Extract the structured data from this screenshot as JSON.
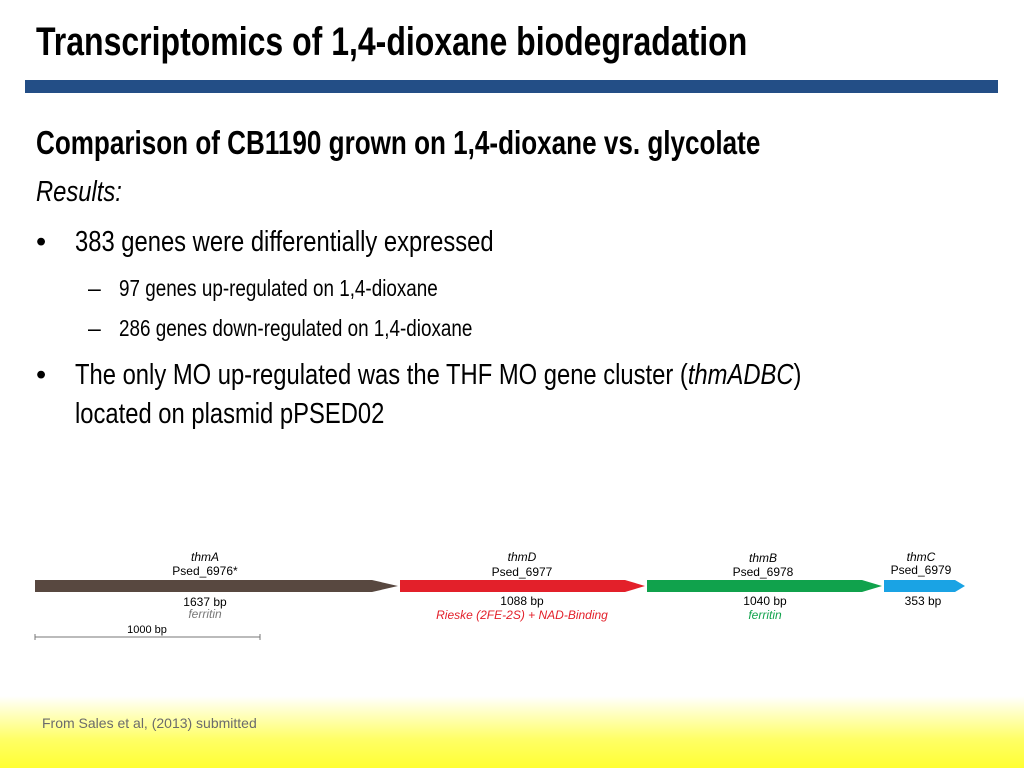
{
  "title": "Transcriptomics of 1,4-dioxane biodegradation",
  "subtitle": "Comparison of CB1190 grown on 1,4-dioxane vs. glycolate",
  "results_label": "Results:",
  "bullets": [
    {
      "text": "383 genes were differentially expressed",
      "sub": [
        "97 genes up-regulated on 1,4-dioxane",
        "286 genes down-regulated on 1,4-dioxane"
      ]
    },
    {
      "line1": [
        "The only MO up-regulated was the THF MO gene cluster (",
        "thmADBC",
        ")"
      ],
      "line2": "located on plasmid pPSED02"
    }
  ],
  "genes": [
    {
      "name": "thmA",
      "id": "Psed_6976*",
      "size": "1637 bp",
      "function": "ferritin"
    },
    {
      "name": "thmD",
      "id": "Psed_6977",
      "size": "1088 bp",
      "function": "Rieske (2FE-2S) + NAD-Binding"
    },
    {
      "name": "thmB",
      "id": "Psed_6978",
      "size": "1040 bp",
      "function": "ferritin"
    },
    {
      "name": "thmC",
      "id": "Psed_6979",
      "size": "353 bp"
    }
  ],
  "scale_bar": "1000 bp",
  "footer": "From Sales et al, (2013) submitted"
}
